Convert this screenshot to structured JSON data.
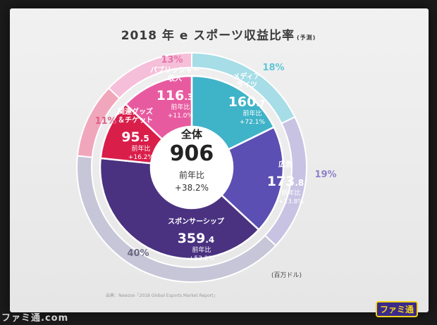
{
  "title": "2018 年 e スポーツ収益比率",
  "title_note": "(予測)",
  "unit": "(百万ドル)",
  "source": "出典：Newzoo「2018 Global Esports Market Report」",
  "center": {
    "label": "全体",
    "value": "906",
    "yoy_label": "前年比",
    "yoy_value": "+38.2%"
  },
  "chart_data": {
    "type": "pie",
    "total": 906,
    "segments": [
      {
        "name": "メディア\nライツ",
        "value": 160.7,
        "value_int": "160",
        "value_dec": ".7",
        "percent": "18%",
        "yoy_label": "前年比",
        "yoy": "+72.1%",
        "color": "#3fb3c8",
        "outer_color": "#a6dde7"
      },
      {
        "name": "広告",
        "value": 173.8,
        "value_int": "173",
        "value_dec": ".8",
        "percent": "19%",
        "yoy_label": "前年比",
        "yoy": "+23.8%",
        "color": "#5b4fb3",
        "outer_color": "#c8c3e3"
      },
      {
        "name": "スポンサーシップ",
        "value": 359.4,
        "value_int": "359",
        "value_dec": ".4",
        "percent": "40%",
        "yoy_label": "前年比",
        "yoy": "+53.2%",
        "color": "#4a3280",
        "outer_color": "#c6c6d8"
      },
      {
        "name": "関連グッズ\n＆チケット",
        "value": 95.5,
        "value_int": "95",
        "value_dec": ".5",
        "percent": "11%",
        "yoy_label": "前年比",
        "yoy": "+16.2%",
        "color": "#d91e4a",
        "outer_color": "#f1a7bb"
      },
      {
        "name": "パブリッシャー\n収入",
        "value": 116.3,
        "value_int": "116",
        "value_dec": ".3",
        "percent": "13%",
        "yoy_label": "前年比",
        "yoy": "+11.0%",
        "color": "#e85aa0",
        "outer_color": "#f5bfd9"
      }
    ]
  },
  "logos": {
    "right": "ファミ通",
    "left": "ファミ通.com"
  }
}
